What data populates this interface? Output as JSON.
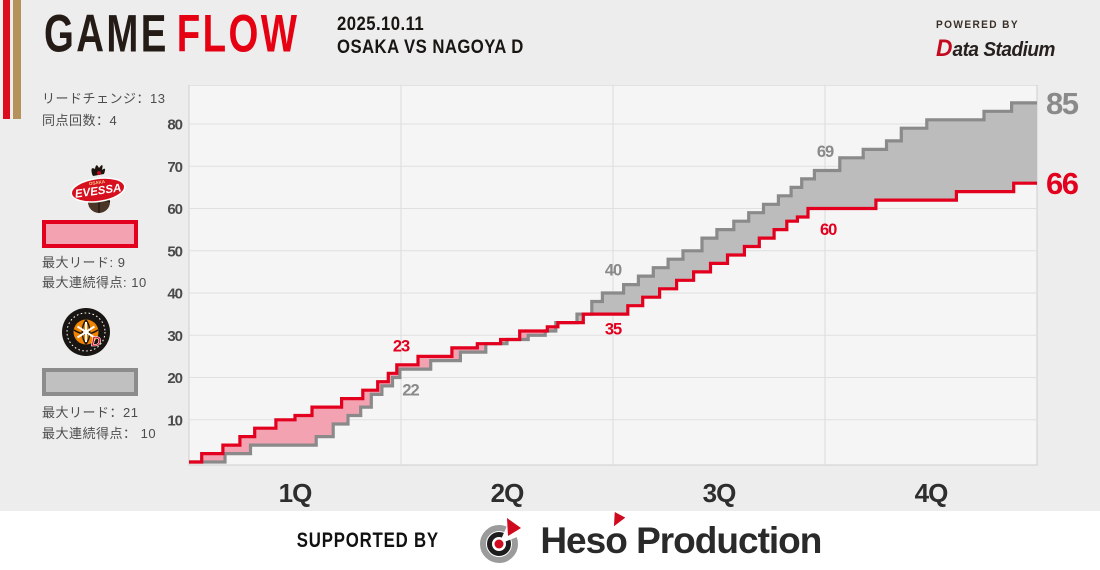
{
  "header": {
    "title_game": "GAME",
    "title_flow": "FLOW",
    "date": "2025.10.11",
    "matchup": "OSAKA VS NAGOYA D",
    "powered_by": "POWERED BY",
    "powered_brand_d": "D",
    "powered_brand_rest": "ata Stadium"
  },
  "sidebar": {
    "lead_changes": "リードチェンジ：13",
    "ties": "同点回数：4",
    "osaka": {
      "team": "OSAKA EVESSA",
      "logo_text": "EVESSA",
      "max_lead": "最大リード: 9",
      "max_run": "最大連続得点: 10"
    },
    "nagoya": {
      "team": "NAGOYA DIAMOND DOLPHINS",
      "logo_text": "D",
      "max_lead": "最大リード：21",
      "max_run": "最大連続得点： 10"
    }
  },
  "chart_data": {
    "type": "line",
    "step": true,
    "title": "GAME FLOW",
    "x_categories": [
      "1Q",
      "2Q",
      "3Q",
      "4Q"
    ],
    "x_range_minutes": [
      0,
      40
    ],
    "quarter_boundaries_min": [
      10,
      20,
      30
    ],
    "ylim": [
      0,
      90
    ],
    "yticks": [
      10,
      20,
      30,
      40,
      50,
      60,
      70,
      80
    ],
    "grid": true,
    "plot_bg": "#f5f5f5",
    "grid_color": "#e0e0e0",
    "border_color": "#cfcfcf",
    "tick_color": "#4a4a4a",
    "xlabel_color": "#2e2e2e",
    "series": [
      {
        "name": "OSAKA (EVESSA)",
        "color": "#e2001e",
        "fill": "#f3a2b1",
        "final_score": 66,
        "quarter_cumulative": [
          23,
          35,
          60,
          66
        ],
        "points": [
          [
            0,
            0
          ],
          [
            0.6,
            2
          ],
          [
            1.6,
            4
          ],
          [
            2.4,
            6
          ],
          [
            3.1,
            8
          ],
          [
            4.1,
            10
          ],
          [
            5.0,
            11
          ],
          [
            5.8,
            13
          ],
          [
            7.2,
            15
          ],
          [
            8.2,
            17
          ],
          [
            8.9,
            19
          ],
          [
            9.4,
            21
          ],
          [
            9.8,
            23
          ],
          [
            10.8,
            25
          ],
          [
            12.4,
            27
          ],
          [
            13.6,
            28
          ],
          [
            14.7,
            29
          ],
          [
            15.6,
            31
          ],
          [
            16.9,
            32
          ],
          [
            17.4,
            33
          ],
          [
            18.6,
            35
          ],
          [
            20.7,
            37
          ],
          [
            21.4,
            39
          ],
          [
            22.2,
            41
          ],
          [
            23.0,
            43
          ],
          [
            23.8,
            45
          ],
          [
            24.6,
            47
          ],
          [
            25.4,
            49
          ],
          [
            26.2,
            51
          ],
          [
            26.9,
            53
          ],
          [
            27.6,
            55
          ],
          [
            28.2,
            57
          ],
          [
            28.7,
            58
          ],
          [
            29.2,
            60
          ],
          [
            32.4,
            62
          ],
          [
            36.2,
            64
          ],
          [
            38.9,
            66
          ]
        ]
      },
      {
        "name": "NAGOYA D (DIAMOND DOLPHINS)",
        "color": "#8a8a8a",
        "fill": "#bcbcbc",
        "final_score": 85,
        "quarter_cumulative": [
          22,
          40,
          69,
          85
        ],
        "points": [
          [
            0,
            0
          ],
          [
            1.7,
            2
          ],
          [
            2.9,
            4
          ],
          [
            6.0,
            6
          ],
          [
            6.8,
            9
          ],
          [
            7.5,
            11
          ],
          [
            8.1,
            13
          ],
          [
            8.6,
            16
          ],
          [
            9.1,
            18
          ],
          [
            9.6,
            20
          ],
          [
            9.95,
            22
          ],
          [
            11.4,
            24
          ],
          [
            12.8,
            26
          ],
          [
            14.0,
            28
          ],
          [
            15.0,
            29
          ],
          [
            16.0,
            30
          ],
          [
            16.8,
            31
          ],
          [
            17.3,
            33
          ],
          [
            18.3,
            35
          ],
          [
            19.0,
            38
          ],
          [
            19.5,
            40
          ],
          [
            20.5,
            42
          ],
          [
            21.2,
            44
          ],
          [
            21.9,
            46
          ],
          [
            22.6,
            48
          ],
          [
            23.3,
            50
          ],
          [
            24.2,
            53
          ],
          [
            24.9,
            55
          ],
          [
            25.7,
            57
          ],
          [
            26.4,
            59
          ],
          [
            27.1,
            61
          ],
          [
            27.8,
            63
          ],
          [
            28.4,
            65
          ],
          [
            28.9,
            67
          ],
          [
            29.5,
            69
          ],
          [
            30.7,
            72
          ],
          [
            31.8,
            74
          ],
          [
            32.9,
            76
          ],
          [
            33.6,
            79
          ],
          [
            34.8,
            81
          ],
          [
            37.5,
            83
          ],
          [
            38.8,
            85
          ]
        ]
      }
    ],
    "annotations": [
      {
        "text": "23",
        "series": 0,
        "t": 10.0,
        "v": 27.5
      },
      {
        "text": "22",
        "series": 1,
        "t": 10.45,
        "v": 17.0
      },
      {
        "text": "40",
        "series": 1,
        "t": 20.0,
        "v": 45.5
      },
      {
        "text": "35",
        "series": 0,
        "t": 20.0,
        "v": 31.5
      },
      {
        "text": "69",
        "series": 1,
        "t": 30.0,
        "v": 73.5
      },
      {
        "text": "60",
        "series": 0,
        "t": 30.15,
        "v": 55.0
      }
    ],
    "final_labels": [
      {
        "text": "85",
        "series": 1,
        "v": 85
      },
      {
        "text": "66",
        "series": 0,
        "v": 66
      }
    ],
    "stats": {
      "lead_changes": 13,
      "ties": 4,
      "osaka_max_lead": 9,
      "osaka_max_run": 10,
      "nagoya_max_lead": 21,
      "nagoya_max_run": 10
    }
  },
  "footer": {
    "supported_by": "SUPPORTED BY",
    "brand_pre": "Hes",
    "brand_o": "o",
    "brand_post": " Production"
  }
}
